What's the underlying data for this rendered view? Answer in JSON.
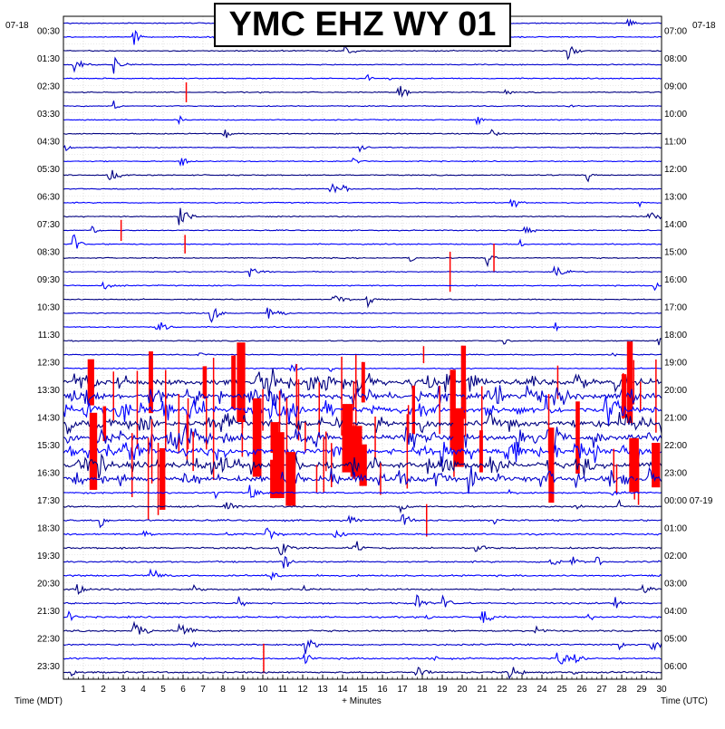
{
  "chart_data": {
    "type": "line",
    "title": "YMC EHZ WY 01",
    "left_date": "07-18",
    "right_date": "07-18",
    "left_axis_label": "Time (MDT)",
    "center_axis_label": "+ Minutes",
    "right_axis_label": "Time (UTC)",
    "x_ticks": [
      "1",
      "2",
      "3",
      "4",
      "5",
      "6",
      "7",
      "8",
      "9",
      "10",
      "11",
      "12",
      "13",
      "14",
      "15",
      "16",
      "17",
      "18",
      "19",
      "20",
      "21",
      "22",
      "23",
      "24",
      "25",
      "26",
      "27",
      "28",
      "29",
      "30"
    ],
    "xlim": [
      0,
      30
    ],
    "left_time_labels": [
      "00:30",
      "01:30",
      "02:30",
      "03:30",
      "04:30",
      "05:30",
      "06:30",
      "07:30",
      "08:30",
      "09:30",
      "10:30",
      "11:30",
      "12:30",
      "13:30",
      "14:30",
      "15:30",
      "16:30",
      "17:30",
      "18:30",
      "19:30",
      "20:30",
      "21:30",
      "22:30",
      "23:30"
    ],
    "right_time_labels": [
      "07:00",
      "08:00",
      "09:00",
      "10:00",
      "11:00",
      "12:00",
      "13:00",
      "14:00",
      "15:00",
      "16:00",
      "17:00",
      "18:00",
      "19:00",
      "20:00",
      "21:00",
      "22:00",
      "23:00",
      "00:00 07-19",
      "01:00",
      "02:00",
      "03:00",
      "04:00",
      "05:00",
      "06:00"
    ],
    "trace_count": 48,
    "trace_colors": [
      "#0000cd",
      "#0000ff",
      "#000080"
    ],
    "clip_color": "#ff0000",
    "grid": true
  }
}
